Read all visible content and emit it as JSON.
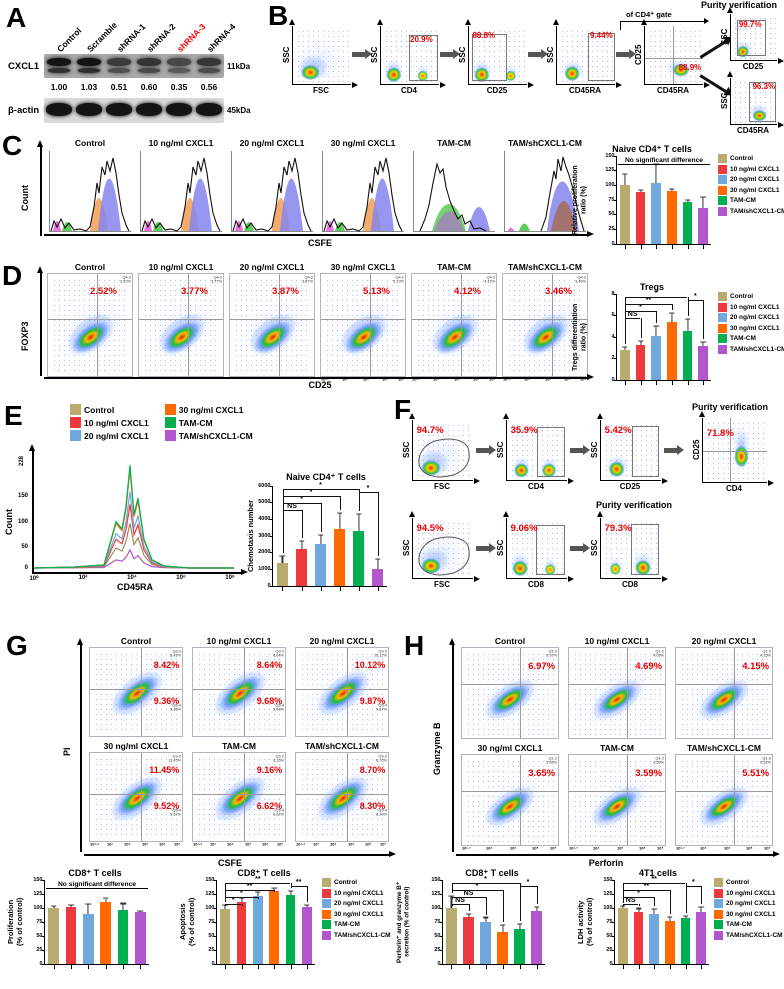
{
  "conditions": [
    "Control",
    "10 ng/ml CXCL1",
    "20 ng/ml CXCL1",
    "30 ng/ml CXCL1",
    "TAM-CM",
    "TAM/shCXCL1-CM"
  ],
  "colors": [
    "#b9ab6e",
    "#ee3a3c",
    "#6fa8dc",
    "#ff6a00",
    "#00b050",
    "#b156cd"
  ],
  "panel_a": {
    "letter": "A",
    "lanes": [
      "Control",
      "Scramble",
      "shRNA-1",
      "shRNA-2",
      "shRNA-3",
      "shRNA-4"
    ],
    "highlight_lane": "shRNA-3",
    "protein1": "CXCL1",
    "kda1": "11kDa",
    "band_values": [
      "1.00",
      "1.03",
      "0.51",
      "0.60",
      "0.35",
      "0.56"
    ],
    "protein2": "β-actin",
    "kda2": "45kDa"
  },
  "panel_b": {
    "letter": "B",
    "purity_title": "Purity verification",
    "gate_note": "of CD4⁺ gate",
    "plots": [
      {
        "y": "SSC",
        "x": "FSC",
        "cloud": "cl-corner"
      },
      {
        "y": "SSC",
        "x": "CD4",
        "pct": "20.9%",
        "pos": "gt",
        "cloud": "cl-two-l",
        "gate": [
          48,
          16,
          46,
          76
        ]
      },
      {
        "y": "SSC",
        "x": "CD25",
        "pct": "88.8%",
        "pos": "tl",
        "cloud": "cl-two-l",
        "gate": [
          6,
          14,
          56,
          78
        ]
      },
      {
        "y": "SSC",
        "x": "CD45RA",
        "pct": "9.44%",
        "pos": "tr",
        "cloud": "cl-one",
        "gate": [
          54,
          12,
          42,
          80
        ]
      },
      {
        "y": "CD25",
        "x": "CD45RA",
        "pct": "88.9%",
        "pos": "br",
        "cloud": "cl-smear",
        "quad": [
          48,
          55
        ]
      }
    ],
    "purity_plots": [
      {
        "y": "SSC",
        "x": "CD25",
        "pct": "99.7%",
        "pos": "pg",
        "cloud": "cl-one",
        "gate": [
          14,
          12,
          58,
          76
        ]
      },
      {
        "y": "SSC",
        "x": "CD45RA",
        "pct": "96.3%",
        "pos": "tr",
        "cloud": "cl-corner-r",
        "gate": [
          40,
          8,
          54,
          84
        ]
      }
    ]
  },
  "panel_c": {
    "letter": "C",
    "ylab": "Count",
    "xlab": "CSFE"
  },
  "panel_d": {
    "letter": "D",
    "ylab": "FOXP3",
    "xlab": "CD25",
    "quad_label": "Q4-2",
    "pcts": [
      "2.52%",
      "3.77%",
      "3.87%",
      "5.13%",
      "4.12%",
      "3.46%"
    ]
  },
  "panel_e": {
    "letter": "E",
    "ylab": "Count",
    "xlab": "CD45RA",
    "ymax_label": "228",
    "yticks": [
      "150",
      "100",
      "50",
      "0"
    ],
    "xticks": [
      "10⁰",
      "10²",
      "10⁴",
      "10⁶",
      "10⁸"
    ]
  },
  "panel_f": {
    "letter": "F",
    "purity_title": "Purity verification",
    "row1": [
      {
        "y": "SSC",
        "x": "FSC",
        "pct": "94.7%",
        "pos": "tl",
        "cloud": "cl-corner",
        "egate": true
      },
      {
        "y": "SSC",
        "x": "CD4",
        "pct": "35.9%",
        "pos": "tl",
        "cloud": "cl-two",
        "gate": [
          50,
          12,
          44,
          80
        ]
      },
      {
        "y": "SSC",
        "x": "CD25",
        "pct": "5.42%",
        "pos": "tl",
        "cloud": "cl-one",
        "gate": [
          52,
          10,
          42,
          82
        ]
      },
      {
        "y": "CD25",
        "x": "CD4",
        "pct": "71.8%",
        "pos": "ptl",
        "cloud": "cl-vert",
        "quad": [
          42,
          52
        ]
      }
    ],
    "row2": [
      {
        "y": "SSC",
        "x": "FSC",
        "pct": "94.5%",
        "pos": "tl",
        "cloud": "cl-corner",
        "egate": true
      },
      {
        "y": "SSC",
        "x": "CD8",
        "pct": "9.06%",
        "pos": "tl",
        "cloud": "cl-two-l",
        "gate": [
          48,
          12,
          46,
          80
        ]
      },
      {
        "y": "SSC",
        "x": "CD8",
        "pct": "79.3%",
        "pos": "tl",
        "cloud": "cl-two-r",
        "gate": [
          50,
          10,
          44,
          82
        ]
      }
    ]
  },
  "panel_g": {
    "letter": "G",
    "ylab": "PI",
    "xlab": "CS FE",
    "quad_top": "Q3-2",
    "quad_bottom": "Q3-4",
    "xlabel": "CSFE",
    "pcts_top": [
      "8.42%",
      "8.64%",
      "10.12%",
      "11.45%",
      "9.16%",
      "8.70%"
    ],
    "pcts_bottom": [
      "9.36%",
      "9.68%",
      "9.87%",
      "9.52%",
      "6.62%",
      "8.30%"
    ],
    "xticks": [
      "10¹·⁴",
      "10³",
      "10⁴",
      "10⁵",
      "10⁶",
      "10⁷"
    ]
  },
  "panel_h": {
    "letter": "H",
    "ylab": "Granzyme B",
    "xlabel": "Perforin",
    "quad_label": "Q1-2",
    "pcts": [
      "6.97%",
      "4.69%",
      "4.15%",
      "3.65%",
      "3.59%",
      "5.51%"
    ],
    "xticks": [
      "10¹·⁷",
      "10⁴",
      "10⁶",
      "10⁸",
      "10⁹"
    ]
  },
  "chart_data": [
    {
      "id": "c_prolif",
      "type": "bar",
      "title": "Naive CD4⁺ T cells",
      "annotation": "No significant difference",
      "ylabel": "Relative proliferation\nratio (%)",
      "ylim": [
        0,
        150
      ],
      "yticks": [
        0,
        25,
        50,
        75,
        100,
        125,
        150
      ],
      "categories": "conditions",
      "values": [
        100,
        89,
        104,
        91,
        72,
        61
      ],
      "errors": [
        20,
        3,
        32,
        3,
        3,
        19
      ],
      "sigs": []
    },
    {
      "id": "d_tregs",
      "type": "bar",
      "title": "Tregs",
      "ylabel": "Tregs differentiation\nratio (%)",
      "ylim": [
        0,
        8
      ],
      "yticks": [
        0,
        2,
        4,
        6,
        8
      ],
      "categories": "conditions",
      "values": [
        2.8,
        3.3,
        4.1,
        5.4,
        4.6,
        3.2
      ],
      "errors": [
        0.3,
        0.3,
        0.9,
        0.8,
        1.1,
        0.3
      ],
      "sigs": [
        {
          "a": 0,
          "b": 1,
          "l": "NS",
          "lv": 0
        },
        {
          "a": 0,
          "b": 2,
          "l": "*",
          "lv": 1
        },
        {
          "a": 0,
          "b": 3,
          "l": "**",
          "lv": 2
        },
        {
          "a": 0,
          "b": 4,
          "l": "*",
          "lv": 3
        },
        {
          "a": 4,
          "b": 5,
          "l": "*",
          "lv": 3,
          "dy": 3
        }
      ]
    },
    {
      "id": "e_chemo",
      "type": "bar",
      "title": "Naive CD4⁺ T cells",
      "ylabel": "Chemotaxis number",
      "ylim": [
        0,
        6000
      ],
      "yticks": [
        0,
        1000,
        2000,
        3000,
        4000,
        5000,
        6000
      ],
      "categories": "conditions",
      "values": [
        1400,
        2250,
        2500,
        3400,
        3300,
        1050
      ],
      "errors": [
        400,
        450,
        550,
        1000,
        1000,
        550
      ],
      "sigs": [
        {
          "a": 0,
          "b": 1,
          "l": "NS",
          "lv": 0
        },
        {
          "a": 0,
          "b": 2,
          "l": "*",
          "lv": 1
        },
        {
          "a": 0,
          "b": 3,
          "l": "*",
          "lv": 2
        },
        {
          "a": 0,
          "b": 4,
          "l": "*",
          "lv": 3
        },
        {
          "a": 4,
          "b": 5,
          "l": "*",
          "lv": 3,
          "dy": 3
        }
      ]
    },
    {
      "id": "g_prolif",
      "type": "bar",
      "title": "CD8⁺ T cells",
      "annotation": "No significant difference",
      "ylabel": "Proliferation\n(% of control)",
      "ylim": [
        0,
        150
      ],
      "yticks": [
        0,
        25,
        50,
        75,
        100,
        125,
        150
      ],
      "categories": "conditions",
      "values": [
        100,
        101,
        90,
        110,
        97,
        92
      ],
      "errors": [
        4,
        5,
        17,
        7,
        11,
        2
      ],
      "sigs": []
    },
    {
      "id": "g_apop",
      "type": "bar",
      "title": "CD8⁺ T cells",
      "ylabel": "Apoptosis\n(% of control)",
      "ylim": [
        0,
        150
      ],
      "yticks": [
        0,
        25,
        50,
        75,
        100,
        125,
        150
      ],
      "categories": "conditions",
      "values": [
        99,
        111,
        121,
        130,
        124,
        102
      ],
      "errors": [
        6,
        6,
        7,
        5,
        7,
        3
      ],
      "sigs": [
        {
          "a": 0,
          "b": 1,
          "l": "*",
          "lv": 0
        },
        {
          "a": 0,
          "b": 2,
          "l": "*",
          "lv": 1
        },
        {
          "a": 0,
          "b": 3,
          "l": "**",
          "lv": 2
        },
        {
          "a": 0,
          "b": 4,
          "l": "**",
          "lv": 3
        },
        {
          "a": 4,
          "b": 5,
          "l": "**",
          "lv": 3,
          "dy": 3
        }
      ]
    },
    {
      "id": "h_secr",
      "type": "bar",
      "title": "CD8⁺ T cells",
      "ylabel": "Perforin⁺ and granzyme B⁺\nsecretion (% of control)",
      "ylim": [
        0,
        150
      ],
      "yticks": [
        0,
        25,
        50,
        75,
        100,
        125,
        150
      ],
      "categories": "conditions",
      "values": [
        100,
        84,
        75,
        58,
        62,
        94
      ],
      "errors": [
        22,
        5,
        8,
        12,
        10,
        8
      ],
      "sigs": [
        {
          "a": 0,
          "b": 1,
          "l": "NS",
          "lv": 0
        },
        {
          "a": 0,
          "b": 2,
          "l": "NS",
          "lv": 1
        },
        {
          "a": 0,
          "b": 3,
          "l": "*",
          "lv": 2
        },
        {
          "a": 0,
          "b": 4,
          "l": "*",
          "lv": 3
        },
        {
          "a": 4,
          "b": 5,
          "l": "*",
          "lv": 3,
          "dy": 3
        }
      ]
    },
    {
      "id": "h_ldh",
      "type": "bar",
      "title": "4T1 cells",
      "ylabel": "LDH activity\n(% of control)",
      "ylim": [
        0,
        150
      ],
      "yticks": [
        0,
        25,
        50,
        75,
        100,
        125,
        150
      ],
      "categories": "conditions",
      "values": [
        100,
        93,
        90,
        76,
        82,
        93
      ],
      "errors": [
        3,
        6,
        8,
        8,
        3,
        8
      ],
      "sigs": [
        {
          "a": 0,
          "b": 1,
          "l": "NS",
          "lv": 0
        },
        {
          "a": 0,
          "b": 2,
          "l": "*",
          "lv": 1
        },
        {
          "a": 0,
          "b": 3,
          "l": "**",
          "lv": 2
        },
        {
          "a": 0,
          "b": 4,
          "l": "**",
          "lv": 3
        },
        {
          "a": 4,
          "b": 5,
          "l": "*",
          "lv": 3,
          "dy": 3
        }
      ]
    }
  ]
}
